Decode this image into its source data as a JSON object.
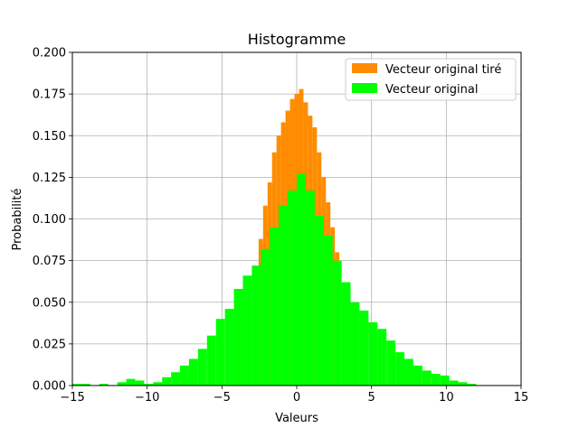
{
  "chart_data": {
    "type": "bar",
    "title": "Histogramme",
    "xlabel": "Valeurs",
    "ylabel": "Probabilité",
    "xlim": [
      -15,
      15
    ],
    "ylim": [
      0,
      0.2
    ],
    "x_ticks": [
      -15,
      -10,
      -5,
      0,
      5,
      10,
      15
    ],
    "x_tick_labels": [
      "−15",
      "−10",
      "−5",
      "0",
      "5",
      "10",
      "15"
    ],
    "y_ticks": [
      0,
      0.025,
      0.05,
      0.075,
      0.1,
      0.125,
      0.15,
      0.175,
      0.2
    ],
    "y_tick_labels": [
      "0.000",
      "0.025",
      "0.050",
      "0.075",
      "0.100",
      "0.125",
      "0.150",
      "0.175",
      "0.200"
    ],
    "grid": true,
    "legend_position": "top-right",
    "series": [
      {
        "name": "Vecteur original tiré",
        "color": "#ff8c00",
        "bins": [
          {
            "x": -2.7,
            "y": 0.068
          },
          {
            "x": -2.4,
            "y": 0.088
          },
          {
            "x": -2.1,
            "y": 0.108
          },
          {
            "x": -1.8,
            "y": 0.122
          },
          {
            "x": -1.5,
            "y": 0.14
          },
          {
            "x": -1.2,
            "y": 0.15
          },
          {
            "x": -0.9,
            "y": 0.158
          },
          {
            "x": -0.6,
            "y": 0.165
          },
          {
            "x": -0.3,
            "y": 0.172
          },
          {
            "x": 0.0,
            "y": 0.175
          },
          {
            "x": 0.3,
            "y": 0.178
          },
          {
            "x": 0.6,
            "y": 0.17
          },
          {
            "x": 0.9,
            "y": 0.162
          },
          {
            "x": 1.2,
            "y": 0.155
          },
          {
            "x": 1.5,
            "y": 0.14
          },
          {
            "x": 1.8,
            "y": 0.125
          },
          {
            "x": 2.1,
            "y": 0.11
          },
          {
            "x": 2.4,
            "y": 0.095
          },
          {
            "x": 2.7,
            "y": 0.08
          }
        ]
      },
      {
        "name": "Vecteur original",
        "color": "#00ff00",
        "bins": [
          {
            "x": -14.7,
            "y": 0.001
          },
          {
            "x": -14.1,
            "y": 0.001
          },
          {
            "x": -12.9,
            "y": 0.001
          },
          {
            "x": -11.7,
            "y": 0.002
          },
          {
            "x": -11.1,
            "y": 0.004
          },
          {
            "x": -10.5,
            "y": 0.003
          },
          {
            "x": -9.9,
            "y": 0.001
          },
          {
            "x": -9.3,
            "y": 0.002
          },
          {
            "x": -8.7,
            "y": 0.005
          },
          {
            "x": -8.1,
            "y": 0.008
          },
          {
            "x": -7.5,
            "y": 0.012
          },
          {
            "x": -6.9,
            "y": 0.016
          },
          {
            "x": -6.3,
            "y": 0.022
          },
          {
            "x": -5.7,
            "y": 0.03
          },
          {
            "x": -5.1,
            "y": 0.04
          },
          {
            "x": -4.5,
            "y": 0.046
          },
          {
            "x": -3.9,
            "y": 0.058
          },
          {
            "x": -3.3,
            "y": 0.066
          },
          {
            "x": -2.7,
            "y": 0.072
          },
          {
            "x": -2.1,
            "y": 0.082
          },
          {
            "x": -1.5,
            "y": 0.095
          },
          {
            "x": -0.9,
            "y": 0.108
          },
          {
            "x": -0.3,
            "y": 0.117
          },
          {
            "x": 0.3,
            "y": 0.127
          },
          {
            "x": 0.9,
            "y": 0.117
          },
          {
            "x": 1.5,
            "y": 0.102
          },
          {
            "x": 2.1,
            "y": 0.09
          },
          {
            "x": 2.7,
            "y": 0.075
          },
          {
            "x": 3.3,
            "y": 0.062
          },
          {
            "x": 3.9,
            "y": 0.05
          },
          {
            "x": 4.5,
            "y": 0.045
          },
          {
            "x": 5.1,
            "y": 0.038
          },
          {
            "x": 5.7,
            "y": 0.034
          },
          {
            "x": 6.3,
            "y": 0.027
          },
          {
            "x": 6.9,
            "y": 0.02
          },
          {
            "x": 7.5,
            "y": 0.016
          },
          {
            "x": 8.1,
            "y": 0.012
          },
          {
            "x": 8.7,
            "y": 0.009
          },
          {
            "x": 9.3,
            "y": 0.007
          },
          {
            "x": 9.9,
            "y": 0.006
          },
          {
            "x": 10.5,
            "y": 0.003
          },
          {
            "x": 11.1,
            "y": 0.002
          },
          {
            "x": 11.7,
            "y": 0.001
          }
        ]
      }
    ]
  }
}
